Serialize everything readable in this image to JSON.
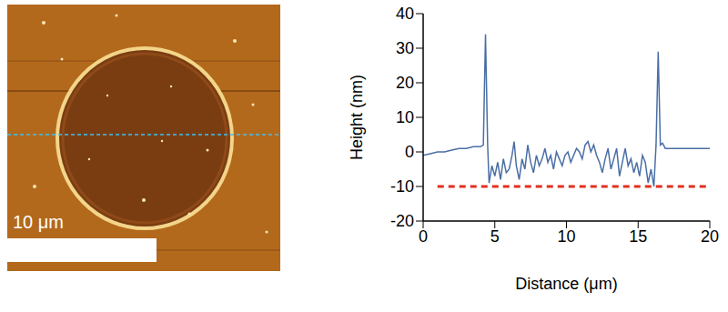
{
  "image": {
    "scale_bar": {
      "label": "10 μm",
      "length": 10
    }
  },
  "chart_data": {
    "type": "line",
    "xlabel": "Distance (μm)",
    "ylabel": "Height (nm)",
    "x": [
      0,
      0.5,
      1,
      1.5,
      2,
      2.5,
      3,
      3.5,
      4,
      4.2,
      4.35,
      4.5,
      4.6,
      4.8,
      5,
      5.2,
      5.4,
      5.6,
      5.8,
      6,
      6.2,
      6.35,
      6.5,
      6.7,
      6.9,
      7.1,
      7.3,
      7.5,
      7.7,
      7.9,
      8.1,
      8.3,
      8.5,
      8.7,
      8.9,
      9.1,
      9.3,
      9.5,
      9.7,
      9.9,
      10.1,
      10.3,
      10.5,
      10.7,
      10.9,
      11.1,
      11.3,
      11.5,
      11.7,
      11.9,
      12.1,
      12.3,
      12.5,
      12.7,
      12.9,
      13.1,
      13.3,
      13.5,
      13.7,
      13.9,
      14.1,
      14.3,
      14.5,
      14.7,
      14.9,
      15.1,
      15.3,
      15.5,
      15.7,
      15.9,
      16.1,
      16.25,
      16.4,
      16.55,
      16.7,
      16.9,
      17.5,
      18,
      18.5,
      19,
      19.5,
      20
    ],
    "values": [
      -1,
      -0.5,
      0,
      0,
      0.5,
      1,
      1,
      1.5,
      1.5,
      2,
      34,
      2,
      -9,
      -4,
      -7,
      -3,
      -8,
      -2,
      -6,
      -5,
      -1,
      3,
      -4,
      -8,
      -2,
      -5,
      2,
      -3,
      -6,
      -1,
      -4,
      -2,
      1,
      -3,
      -1,
      -5,
      0,
      -2,
      -4,
      -1,
      0,
      -3,
      -1,
      1,
      0,
      -2,
      2,
      3,
      0,
      2,
      -1,
      -3,
      -6,
      -2,
      1,
      -5,
      -2,
      1,
      -7,
      -3,
      1,
      -4,
      -2,
      -6,
      -3,
      -7,
      -1,
      -3,
      -9,
      -5,
      -10,
      2,
      29,
      2,
      2.5,
      1,
      1,
      1,
      1,
      1,
      1,
      1
    ],
    "color": "#4a6fa5",
    "xlim": [
      0,
      20
    ],
    "xticks": [
      0,
      5,
      10,
      15,
      20
    ],
    "ylim": [
      -20,
      40
    ],
    "yticks": [
      -20,
      -10,
      0,
      10,
      20,
      30,
      40
    ],
    "grid": false,
    "reference_lines": [
      {
        "y": -10,
        "x": [
          1,
          20
        ],
        "color": "#e0301e",
        "line_style": "dashed"
      }
    ]
  }
}
